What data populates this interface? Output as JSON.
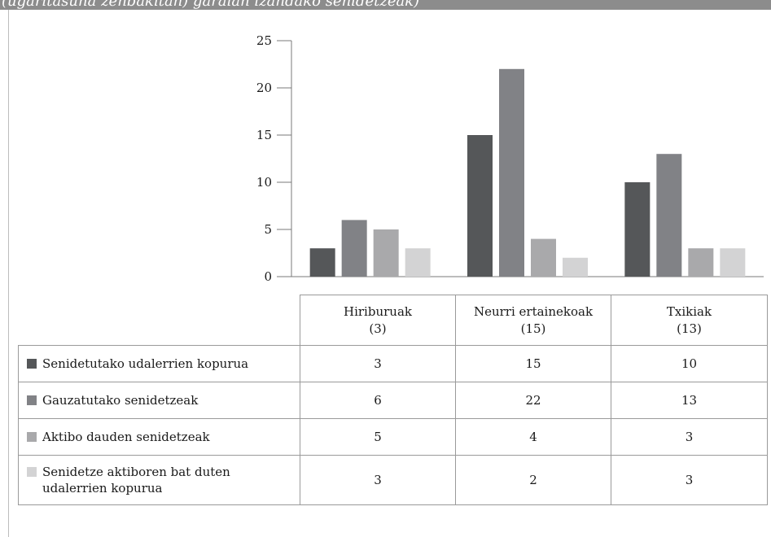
{
  "header": {
    "title_fragment": "(ugaritasuna zenbakitan) garaian izandako senidetzeak)"
  },
  "chart_data": {
    "type": "bar",
    "categories": [
      "Hiriburuak (3)",
      "Neurri ertainekoak (15)",
      "Txikiak (13)"
    ],
    "category_lines": [
      [
        "Hiriburuak",
        "(3)"
      ],
      [
        "Neurri ertainekoak",
        "(15)"
      ],
      [
        "Txikiak",
        "(13)"
      ]
    ],
    "series": [
      {
        "name": "Senidetutako udalerrien kopurua",
        "values": [
          3,
          15,
          10
        ],
        "color": "#555759"
      },
      {
        "name": "Gauzatutako senidetzeak",
        "values": [
          6,
          22,
          13
        ],
        "color": "#818286"
      },
      {
        "name": "Aktibo dauden senidetzeak",
        "values": [
          5,
          4,
          3
        ],
        "color": "#a9a9ab"
      },
      {
        "name": "Senidetze aktiboren bat duten udalerrien kopurua",
        "values": [
          3,
          2,
          3
        ],
        "color": "#d3d3d4"
      }
    ],
    "ylim": [
      0,
      25
    ],
    "yticks": [
      0,
      5,
      10,
      15,
      20,
      25
    ],
    "grid": false,
    "legend": "data table below chart",
    "xlabel": "",
    "ylabel": ""
  }
}
